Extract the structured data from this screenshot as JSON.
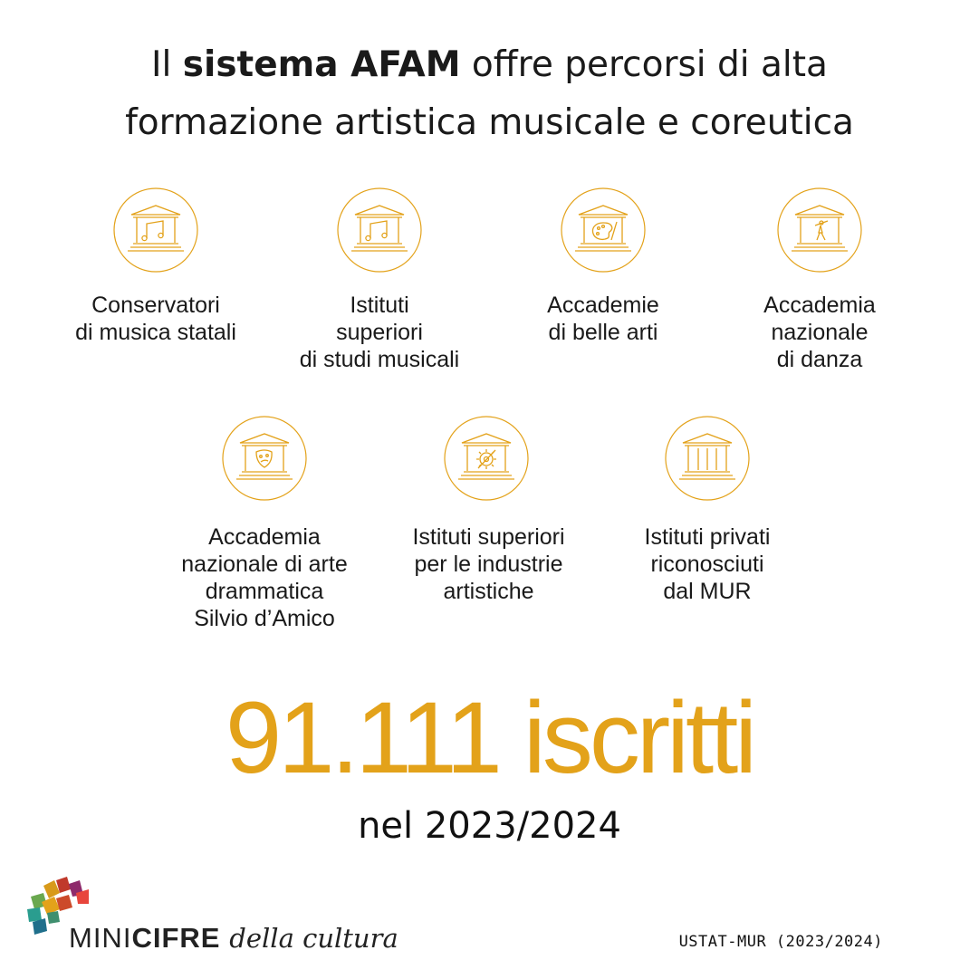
{
  "title": {
    "part1": "Il ",
    "bold": "sistema AFAM",
    "part2": " offre percorsi di alta",
    "line2": "formazione artistica musicale e coreutica"
  },
  "accent_color": "#e3a21a",
  "institutions": [
    {
      "label": "Conservatori\ndi musica statali",
      "icon": "building-music-notes-icon"
    },
    {
      "label": "Istituti\nsuperiori\ndi studi musicali",
      "icon": "building-music-notes-icon"
    },
    {
      "label": "Accademie\ndi belle arti",
      "icon": "building-palette-icon"
    },
    {
      "label": "Accademia\nnazionale\ndi danza",
      "icon": "building-dancer-icon"
    },
    {
      "label": "Accademia\nnazionale di arte\ndrammatica\nSilvio d’Amico",
      "icon": "building-theatre-masks-icon"
    },
    {
      "label": "Istituti superiori\nper le industrie\nartistiche",
      "icon": "building-gear-icon"
    },
    {
      "label": "Istituti privati\nriconosciuti\ndal MUR",
      "icon": "building-columns-icon"
    }
  ],
  "stat": {
    "value": "91.111 iscritti",
    "period": "nel 2023/2024"
  },
  "brand": {
    "part1": "MINI",
    "part2": "CIFRE",
    "part3": "della cultura"
  },
  "source": "USTAT-MUR (2023/2024)"
}
